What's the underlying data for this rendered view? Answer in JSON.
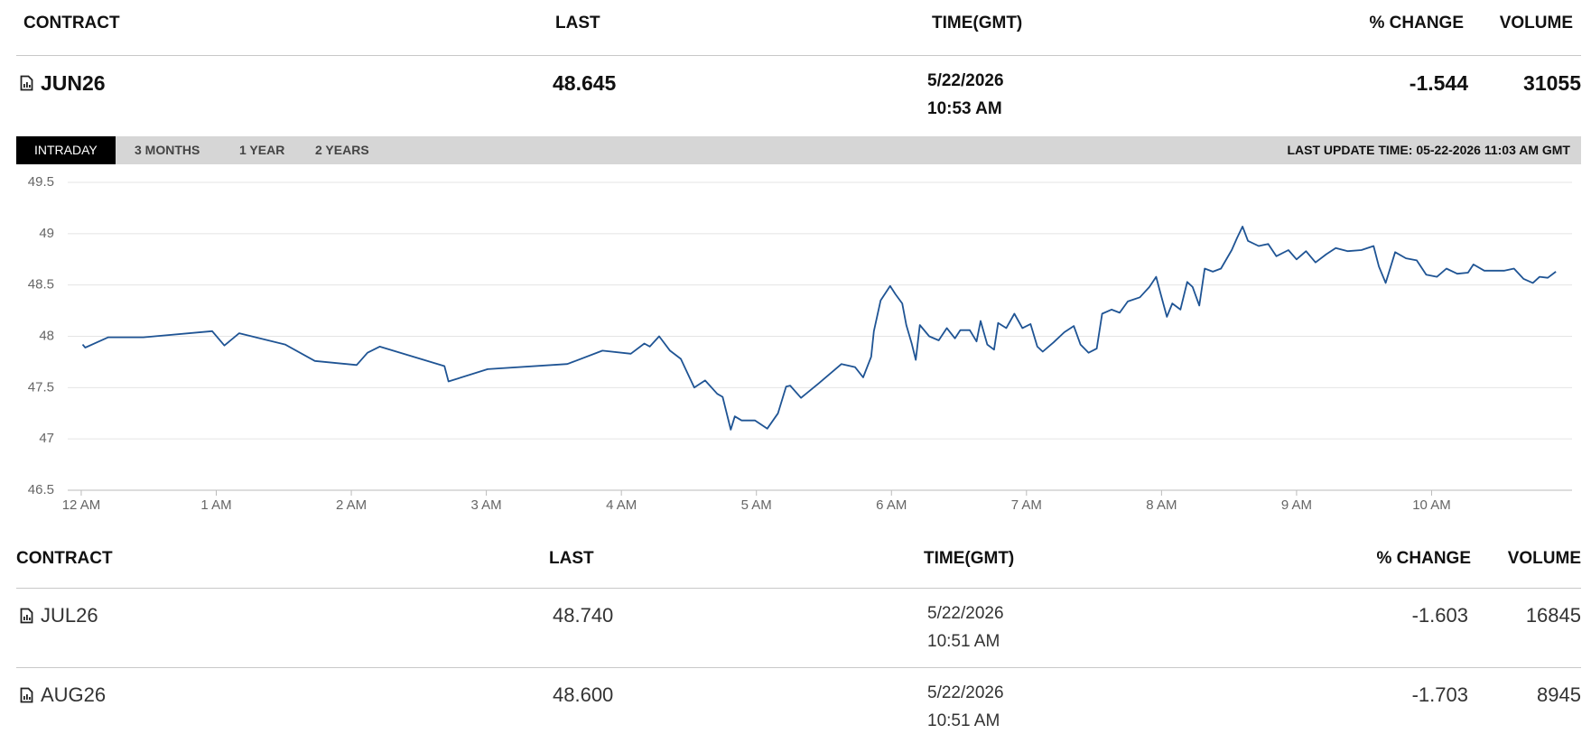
{
  "summary": {
    "columns": [
      "CONTRACT",
      "LAST",
      "TIME(GMT)",
      "% CHANGE",
      "VOLUME"
    ],
    "row": {
      "contract": "JUN26",
      "last": "48.645",
      "date": "5/22/2026",
      "time": "10:53 AM",
      "change": "-1.544",
      "volume": "31055"
    }
  },
  "tabs": [
    "INTRADAY",
    "3 MONTHS",
    "1 YEAR",
    "2 YEARS"
  ],
  "last_update": "LAST UPDATE TIME: 05-22-2026 11:03 AM GMT",
  "chart_data": {
    "type": "line",
    "color": "#1f5494",
    "grid": true,
    "xlim": [
      -0.1,
      11.04
    ],
    "ylim": [
      46.5,
      49.5
    ],
    "yticks": [
      46.5,
      47,
      47.5,
      48,
      48.5,
      49,
      49.5
    ],
    "xticks": [
      {
        "value": 0,
        "label": "12 AM"
      },
      {
        "value": 1,
        "label": "1 AM"
      },
      {
        "value": 2,
        "label": "2 AM"
      },
      {
        "value": 3,
        "label": "3 AM"
      },
      {
        "value": 4,
        "label": "4 AM"
      },
      {
        "value": 5,
        "label": "5 AM"
      },
      {
        "value": 6,
        "label": "6 AM"
      },
      {
        "value": 7,
        "label": "7 AM"
      },
      {
        "value": 8,
        "label": "8 AM"
      },
      {
        "value": 9,
        "label": "9 AM"
      },
      {
        "value": 10,
        "label": "10 AM"
      }
    ],
    "x": [
      0.01,
      0.03,
      0.2,
      0.46,
      0.97,
      1.06,
      1.17,
      1.51,
      1.73,
      2.04,
      2.12,
      2.21,
      2.69,
      2.72,
      3.01,
      3.6,
      3.86,
      4.07,
      4.17,
      4.21,
      4.28,
      4.36,
      4.44,
      4.54,
      4.62,
      4.71,
      4.75,
      4.81,
      4.84,
      4.89,
      4.99,
      5.08,
      5.16,
      5.22,
      5.25,
      5.33,
      5.46,
      5.63,
      5.73,
      5.79,
      5.85,
      5.87,
      5.92,
      5.99,
      6.03,
      6.08,
      6.11,
      6.15,
      6.18,
      6.21,
      6.28,
      6.35,
      6.41,
      6.47,
      6.51,
      6.58,
      6.63,
      6.66,
      6.71,
      6.76,
      6.79,
      6.85,
      6.91,
      6.97,
      7.03,
      7.08,
      7.12,
      7.2,
      7.28,
      7.35,
      7.4,
      7.46,
      7.52,
      7.56,
      7.63,
      7.69,
      7.75,
      7.84,
      7.91,
      7.96,
      7.99,
      8.04,
      8.08,
      8.14,
      8.19,
      8.23,
      8.28,
      8.32,
      8.38,
      8.44,
      8.52,
      8.56,
      8.6,
      8.64,
      8.72,
      8.79,
      8.85,
      8.94,
      9.0,
      9.07,
      9.14,
      9.22,
      9.29,
      9.38,
      9.48,
      9.57,
      9.61,
      9.66,
      9.73,
      9.81,
      9.89,
      9.96,
      10.04,
      10.11,
      10.19,
      10.27,
      10.31,
      10.39,
      10.54,
      10.61,
      10.68,
      10.75,
      10.8,
      10.86,
      10.92
    ],
    "values": [
      47.92,
      47.89,
      47.99,
      47.99,
      48.05,
      47.91,
      48.03,
      47.92,
      47.76,
      47.72,
      47.84,
      47.9,
      47.71,
      47.56,
      47.68,
      47.73,
      47.86,
      47.83,
      47.93,
      47.9,
      48.0,
      47.86,
      47.78,
      47.5,
      47.57,
      47.44,
      47.41,
      47.09,
      47.22,
      47.18,
      47.18,
      47.1,
      47.25,
      47.51,
      47.52,
      47.4,
      47.54,
      47.73,
      47.7,
      47.6,
      47.8,
      48.05,
      48.35,
      48.49,
      48.41,
      48.32,
      48.11,
      47.93,
      47.77,
      48.11,
      48.0,
      47.96,
      48.08,
      47.98,
      48.06,
      48.06,
      47.95,
      48.15,
      47.92,
      47.87,
      48.13,
      48.08,
      48.22,
      48.08,
      48.12,
      47.9,
      47.85,
      47.94,
      48.04,
      48.1,
      47.92,
      47.84,
      47.88,
      48.22,
      48.26,
      48.23,
      48.34,
      48.38,
      48.48,
      48.58,
      48.43,
      48.19,
      48.32,
      48.26,
      48.53,
      48.48,
      48.3,
      48.66,
      48.63,
      48.66,
      48.84,
      48.96,
      49.07,
      48.93,
      48.88,
      48.9,
      48.78,
      48.84,
      48.75,
      48.83,
      48.72,
      48.8,
      48.86,
      48.83,
      48.84,
      48.88,
      48.68,
      48.52,
      48.82,
      48.76,
      48.74,
      48.6,
      48.58,
      48.66,
      48.61,
      48.62,
      48.7,
      48.64,
      48.64,
      48.66,
      48.56,
      48.52,
      48.58,
      48.57,
      48.63
    ]
  },
  "table": {
    "columns": [
      "CONTRACT",
      "LAST",
      "TIME(GMT)",
      "% CHANGE",
      "VOLUME"
    ],
    "rows": [
      {
        "contract": "JUL26",
        "last": "48.740",
        "date": "5/22/2026",
        "time": "10:51 AM",
        "change": "-1.603",
        "volume": "16845"
      },
      {
        "contract": "AUG26",
        "last": "48.600",
        "date": "5/22/2026",
        "time": "10:51 AM",
        "change": "-1.703",
        "volume": "8945"
      }
    ]
  }
}
